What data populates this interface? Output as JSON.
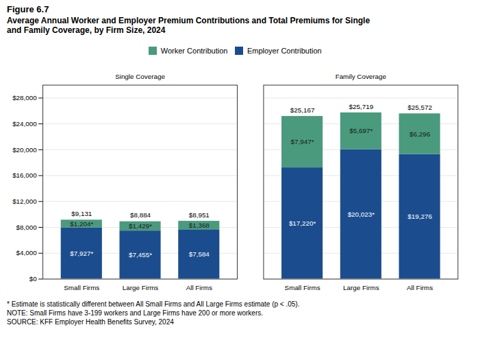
{
  "chart_data": {
    "type": "bar",
    "stacked": true,
    "title": "Figure 6.7",
    "subtitle": "Average Annual Worker and Employer Premium Contributions and Total Premiums for Single\nand Family Coverage, by Firm Size, 2024",
    "categories": [
      "Small Firms",
      "Large Firms",
      "All Firms",
      "Small Firms",
      "Large Firms",
      "All Firms"
    ],
    "groups": [
      "Single Coverage",
      "Single Coverage",
      "Single Coverage",
      "Family Coverage",
      "Family Coverage",
      "Family Coverage"
    ],
    "series": [
      {
        "name": "Employer Contribution",
        "color": "#1b4d8e",
        "values": [
          7927,
          7455,
          7584,
          17220,
          20023,
          19276
        ],
        "value_labels": [
          "$7,927*",
          "$7,455*",
          "$7,584",
          "$17,220*",
          "$20,023*",
          "$19,276"
        ]
      },
      {
        "name": "Worker Contribution",
        "color": "#4a9a7e",
        "values": [
          1204,
          1429,
          1368,
          7947,
          5697,
          6296
        ],
        "value_labels": [
          "$1,204*",
          "$1,429*",
          "$1,368",
          "$7,947*",
          "$5,697*",
          "$6,296"
        ]
      }
    ],
    "totals": [
      9131,
      8884,
      8951,
      25167,
      25719,
      25572
    ],
    "total_labels": [
      "$9,131",
      "$8,884",
      "$8,951",
      "$25,167",
      "$25,719",
      "$25,572"
    ],
    "data_labels": true,
    "ylim": [
      0,
      30000
    ],
    "yticks": [
      {
        "value": 0,
        "label": "$0"
      },
      {
        "value": 4000,
        "label": "$4,000"
      },
      {
        "value": 8000,
        "label": "$8,000"
      },
      {
        "value": 12000,
        "label": "$12,000"
      },
      {
        "value": 16000,
        "label": "$16,000"
      },
      {
        "value": 20000,
        "label": "$20,000"
      },
      {
        "value": 24000,
        "label": "$24,000"
      },
      {
        "value": 28000,
        "label": "$28,000"
      }
    ],
    "grid": true,
    "legend": "top",
    "footnotes": [
      "* Estimate is statistically different between All Small Firms and All Large Firms estimate (p < .05).",
      "NOTE:  Small Firms have 3-199 workers and Large Firms have 200 or more workers.",
      "SOURCE:  KFF Employer Health Benefits Survey, 2024"
    ]
  }
}
